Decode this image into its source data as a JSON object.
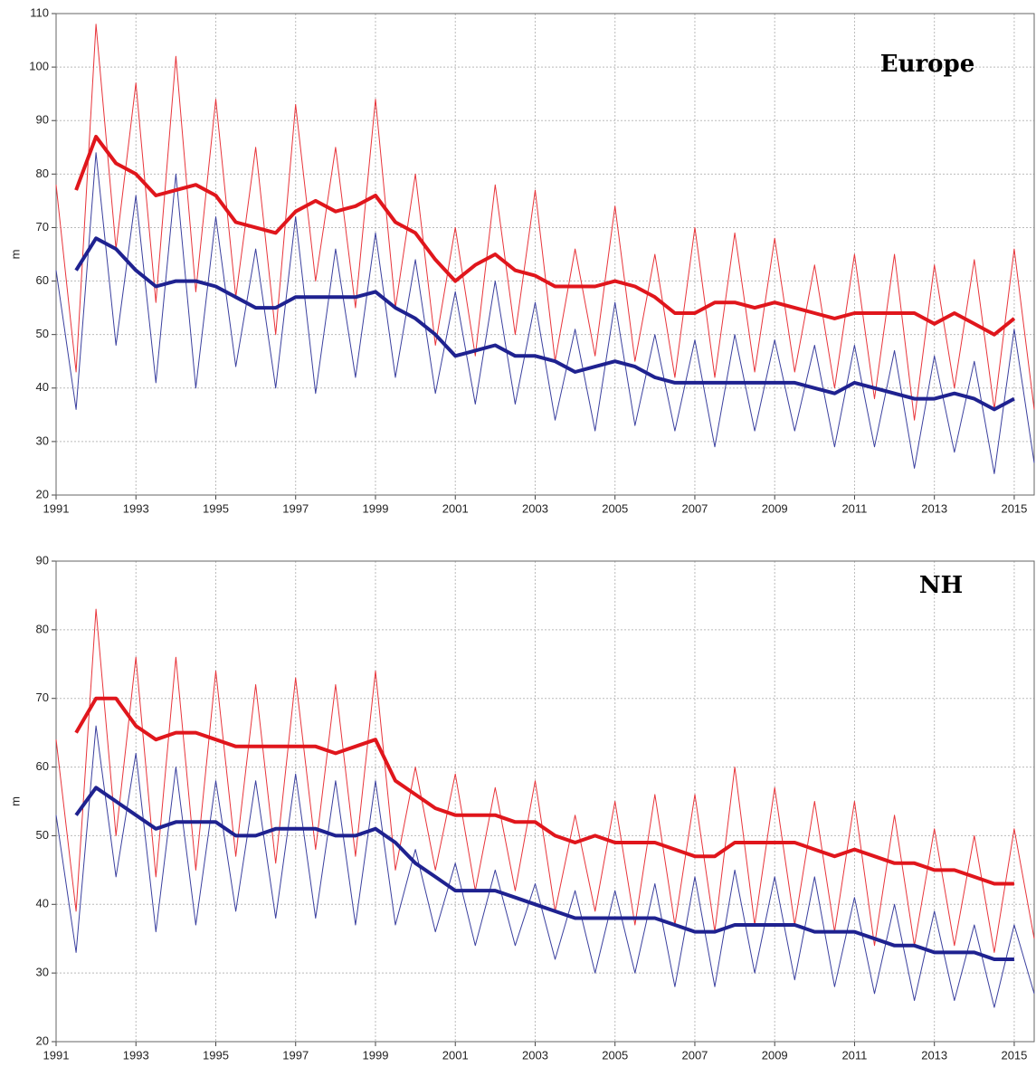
{
  "chart_data": [
    {
      "type": "line",
      "title": "Europe",
      "y_label": "m",
      "x": [
        1991.0,
        1991.5,
        1992.0,
        1992.5,
        1993.0,
        1993.5,
        1994.0,
        1994.5,
        1995.0,
        1995.5,
        1996.0,
        1996.5,
        1997.0,
        1997.5,
        1998.0,
        1998.5,
        1999.0,
        1999.5,
        2000.0,
        2000.5,
        2001.0,
        2001.5,
        2002.0,
        2002.5,
        2003.0,
        2003.5,
        2004.0,
        2004.5,
        2005.0,
        2005.5,
        2006.0,
        2006.5,
        2007.0,
        2007.5,
        2008.0,
        2008.5,
        2009.0,
        2009.5,
        2010.0,
        2010.5,
        2011.0,
        2011.5,
        2012.0,
        2012.5,
        2013.0,
        2013.5,
        2014.0,
        2014.5,
        2015.0,
        2015.5
      ],
      "series": [
        {
          "color": "#e8343a",
          "width": 1,
          "values": [
            78,
            43,
            108,
            66,
            97,
            56,
            102,
            58,
            94,
            57,
            85,
            50,
            93,
            60,
            85,
            55,
            94,
            55,
            80,
            48,
            70,
            46,
            78,
            50,
            77,
            45,
            66,
            46,
            74,
            45,
            65,
            42,
            70,
            42,
            69,
            43,
            68,
            43,
            63,
            40,
            65,
            38,
            65,
            34,
            63,
            40,
            64,
            36,
            66,
            36
          ]
        },
        {
          "color": "#3a3f9e",
          "width": 1,
          "values": [
            62,
            36,
            84,
            48,
            76,
            41,
            80,
            40,
            72,
            44,
            66,
            40,
            72,
            39,
            66,
            42,
            69,
            42,
            64,
            39,
            58,
            37,
            60,
            37,
            56,
            34,
            51,
            32,
            56,
            33,
            50,
            32,
            49,
            29,
            50,
            32,
            49,
            32,
            48,
            29,
            48,
            29,
            47,
            25,
            46,
            28,
            45,
            24,
            51,
            26
          ]
        },
        {
          "color": "#e0161c",
          "width": 4,
          "values": [
            null,
            77,
            87,
            82,
            80,
            76,
            77,
            78,
            76,
            71,
            70,
            69,
            73,
            75,
            73,
            74,
            76,
            71,
            69,
            64,
            60,
            63,
            65,
            62,
            61,
            59,
            59,
            59,
            60,
            59,
            57,
            54,
            54,
            56,
            56,
            55,
            56,
            55,
            54,
            53,
            54,
            54,
            54,
            54,
            52,
            54,
            52,
            50,
            53,
            null
          ]
        },
        {
          "color": "#1f2290",
          "width": 4,
          "values": [
            null,
            62,
            68,
            66,
            62,
            59,
            60,
            60,
            59,
            57,
            55,
            55,
            57,
            57,
            57,
            57,
            58,
            55,
            53,
            50,
            46,
            47,
            48,
            46,
            46,
            45,
            43,
            44,
            45,
            44,
            42,
            41,
            41,
            41,
            41,
            41,
            41,
            41,
            40,
            39,
            41,
            40,
            39,
            38,
            38,
            39,
            38,
            36,
            38,
            null
          ]
        }
      ],
      "xlim": [
        1991,
        2015.5
      ],
      "xticks": [
        1991,
        1993,
        1995,
        1997,
        1999,
        2001,
        2003,
        2005,
        2007,
        2009,
        2011,
        2013,
        2015
      ],
      "ylim": [
        20,
        110
      ],
      "yticks": [
        20,
        30,
        40,
        50,
        60,
        70,
        80,
        90,
        100,
        110
      ],
      "grid": true
    },
    {
      "type": "line",
      "title": "NH",
      "y_label": "m",
      "x": [
        1991.0,
        1991.5,
        1992.0,
        1992.5,
        1993.0,
        1993.5,
        1994.0,
        1994.5,
        1995.0,
        1995.5,
        1996.0,
        1996.5,
        1997.0,
        1997.5,
        1998.0,
        1998.5,
        1999.0,
        1999.5,
        2000.0,
        2000.5,
        2001.0,
        2001.5,
        2002.0,
        2002.5,
        2003.0,
        2003.5,
        2004.0,
        2004.5,
        2005.0,
        2005.5,
        2006.0,
        2006.5,
        2007.0,
        2007.5,
        2008.0,
        2008.5,
        2009.0,
        2009.5,
        2010.0,
        2010.5,
        2011.0,
        2011.5,
        2012.0,
        2012.5,
        2013.0,
        2013.5,
        2014.0,
        2014.5,
        2015.0,
        2015.5
      ],
      "series": [
        {
          "color": "#e8343a",
          "width": 1,
          "values": [
            64,
            39,
            83,
            50,
            76,
            44,
            76,
            45,
            74,
            47,
            72,
            46,
            73,
            48,
            72,
            47,
            74,
            45,
            60,
            45,
            59,
            42,
            57,
            42,
            58,
            39,
            53,
            39,
            55,
            37,
            56,
            37,
            56,
            36,
            60,
            37,
            57,
            37,
            55,
            36,
            55,
            34,
            53,
            34,
            51,
            34,
            50,
            33,
            51,
            35
          ]
        },
        {
          "color": "#3a3f9e",
          "width": 1,
          "values": [
            53,
            33,
            66,
            44,
            62,
            36,
            60,
            37,
            58,
            39,
            58,
            38,
            59,
            38,
            58,
            37,
            58,
            37,
            48,
            36,
            46,
            34,
            45,
            34,
            43,
            32,
            42,
            30,
            42,
            30,
            43,
            28,
            44,
            28,
            45,
            30,
            44,
            29,
            44,
            28,
            41,
            27,
            40,
            26,
            39,
            26,
            37,
            25,
            37,
            27
          ]
        },
        {
          "color": "#e0161c",
          "width": 4,
          "values": [
            null,
            65,
            70,
            70,
            66,
            64,
            65,
            65,
            64,
            63,
            63,
            63,
            63,
            63,
            62,
            63,
            64,
            58,
            56,
            54,
            53,
            53,
            53,
            52,
            52,
            50,
            49,
            50,
            49,
            49,
            49,
            48,
            47,
            47,
            49,
            49,
            49,
            49,
            48,
            47,
            48,
            47,
            46,
            46,
            45,
            45,
            44,
            43,
            43,
            null
          ]
        },
        {
          "color": "#1f2290",
          "width": 4,
          "values": [
            null,
            53,
            57,
            55,
            53,
            51,
            52,
            52,
            52,
            50,
            50,
            51,
            51,
            51,
            50,
            50,
            51,
            49,
            46,
            44,
            42,
            42,
            42,
            41,
            40,
            39,
            38,
            38,
            38,
            38,
            38,
            37,
            36,
            36,
            37,
            37,
            37,
            37,
            36,
            36,
            36,
            35,
            34,
            34,
            33,
            33,
            33,
            32,
            32,
            null
          ]
        }
      ],
      "xlim": [
        1991,
        2015.5
      ],
      "xticks": [
        1991,
        1993,
        1995,
        1997,
        1999,
        2001,
        2003,
        2005,
        2007,
        2009,
        2011,
        2013,
        2015
      ],
      "ylim": [
        20,
        90
      ],
      "yticks": [
        20,
        30,
        40,
        50,
        60,
        70,
        80,
        90
      ],
      "grid": true
    }
  ]
}
